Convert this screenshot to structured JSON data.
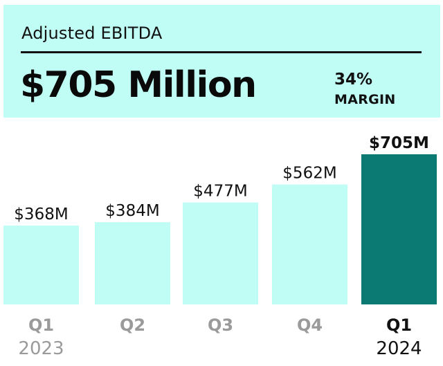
{
  "header": {
    "title": "Adjusted EBITDA",
    "headline": "$705 Million",
    "margin_value": "34%",
    "margin_label": "MARGIN"
  },
  "colors": {
    "light_bar": "#c0fdf4",
    "highlight_bar": "#0b7a72",
    "header_bg": "#c0fdf4"
  },
  "chart_data": {
    "type": "bar",
    "title": "Adjusted EBITDA",
    "xlabel": "",
    "ylabel": "",
    "unit": "$M",
    "categories": [
      "Q1 2023",
      "Q2 2023",
      "Q3 2023",
      "Q4 2023",
      "Q1 2024"
    ],
    "quarter_labels": [
      "Q1",
      "Q2",
      "Q3",
      "Q4",
      "Q1"
    ],
    "year_labels": [
      "2023",
      "",
      "",
      "",
      "2024"
    ],
    "values": [
      368,
      384,
      477,
      562,
      705
    ],
    "data_labels": [
      "$368M",
      "$384M",
      "$477M",
      "$562M",
      "$705M"
    ],
    "highlight_index": 4,
    "grid": false,
    "legend": "none"
  }
}
